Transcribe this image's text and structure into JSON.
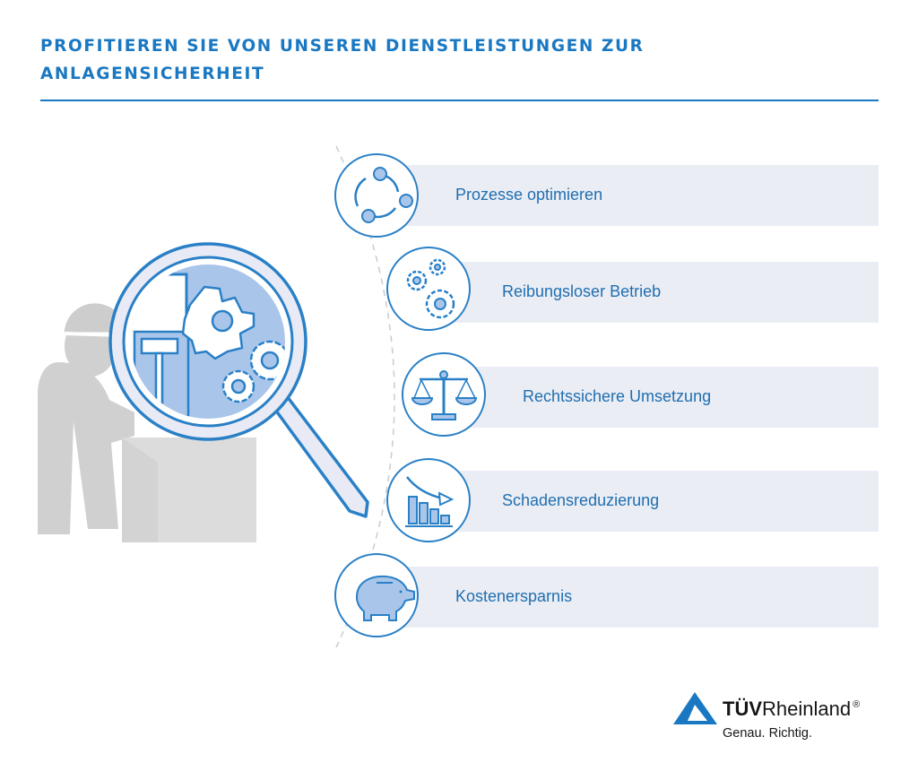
{
  "title": "PROFITIEREN SIE VON UNSEREN DIENSTLEISTUNGEN ZUR ANLAGENSICHERHEIT",
  "benefits": [
    {
      "label": "Prozesse optimieren",
      "icon": "process-cycle-icon"
    },
    {
      "label": "Reibungsloser Betrieb",
      "icon": "gears-icon"
    },
    {
      "label": "Rechtssichere Umsetzung",
      "icon": "scales-icon"
    },
    {
      "label": "Schadensreduzierung",
      "icon": "declining-bar-chart-icon"
    },
    {
      "label": "Kostenersparnis",
      "icon": "piggy-bank-icon"
    }
  ],
  "logo": {
    "brand_bold": "TÜV",
    "brand_regular": "Rheinland",
    "registered": "®",
    "tagline": "Genau. Richtig."
  },
  "colors": {
    "accent": "#1a78c2",
    "icon_blue": "#2a80c6",
    "light_blue": "#a9c6ea",
    "band": "#ebedf5",
    "figure_grey": "#cfcfcf"
  }
}
